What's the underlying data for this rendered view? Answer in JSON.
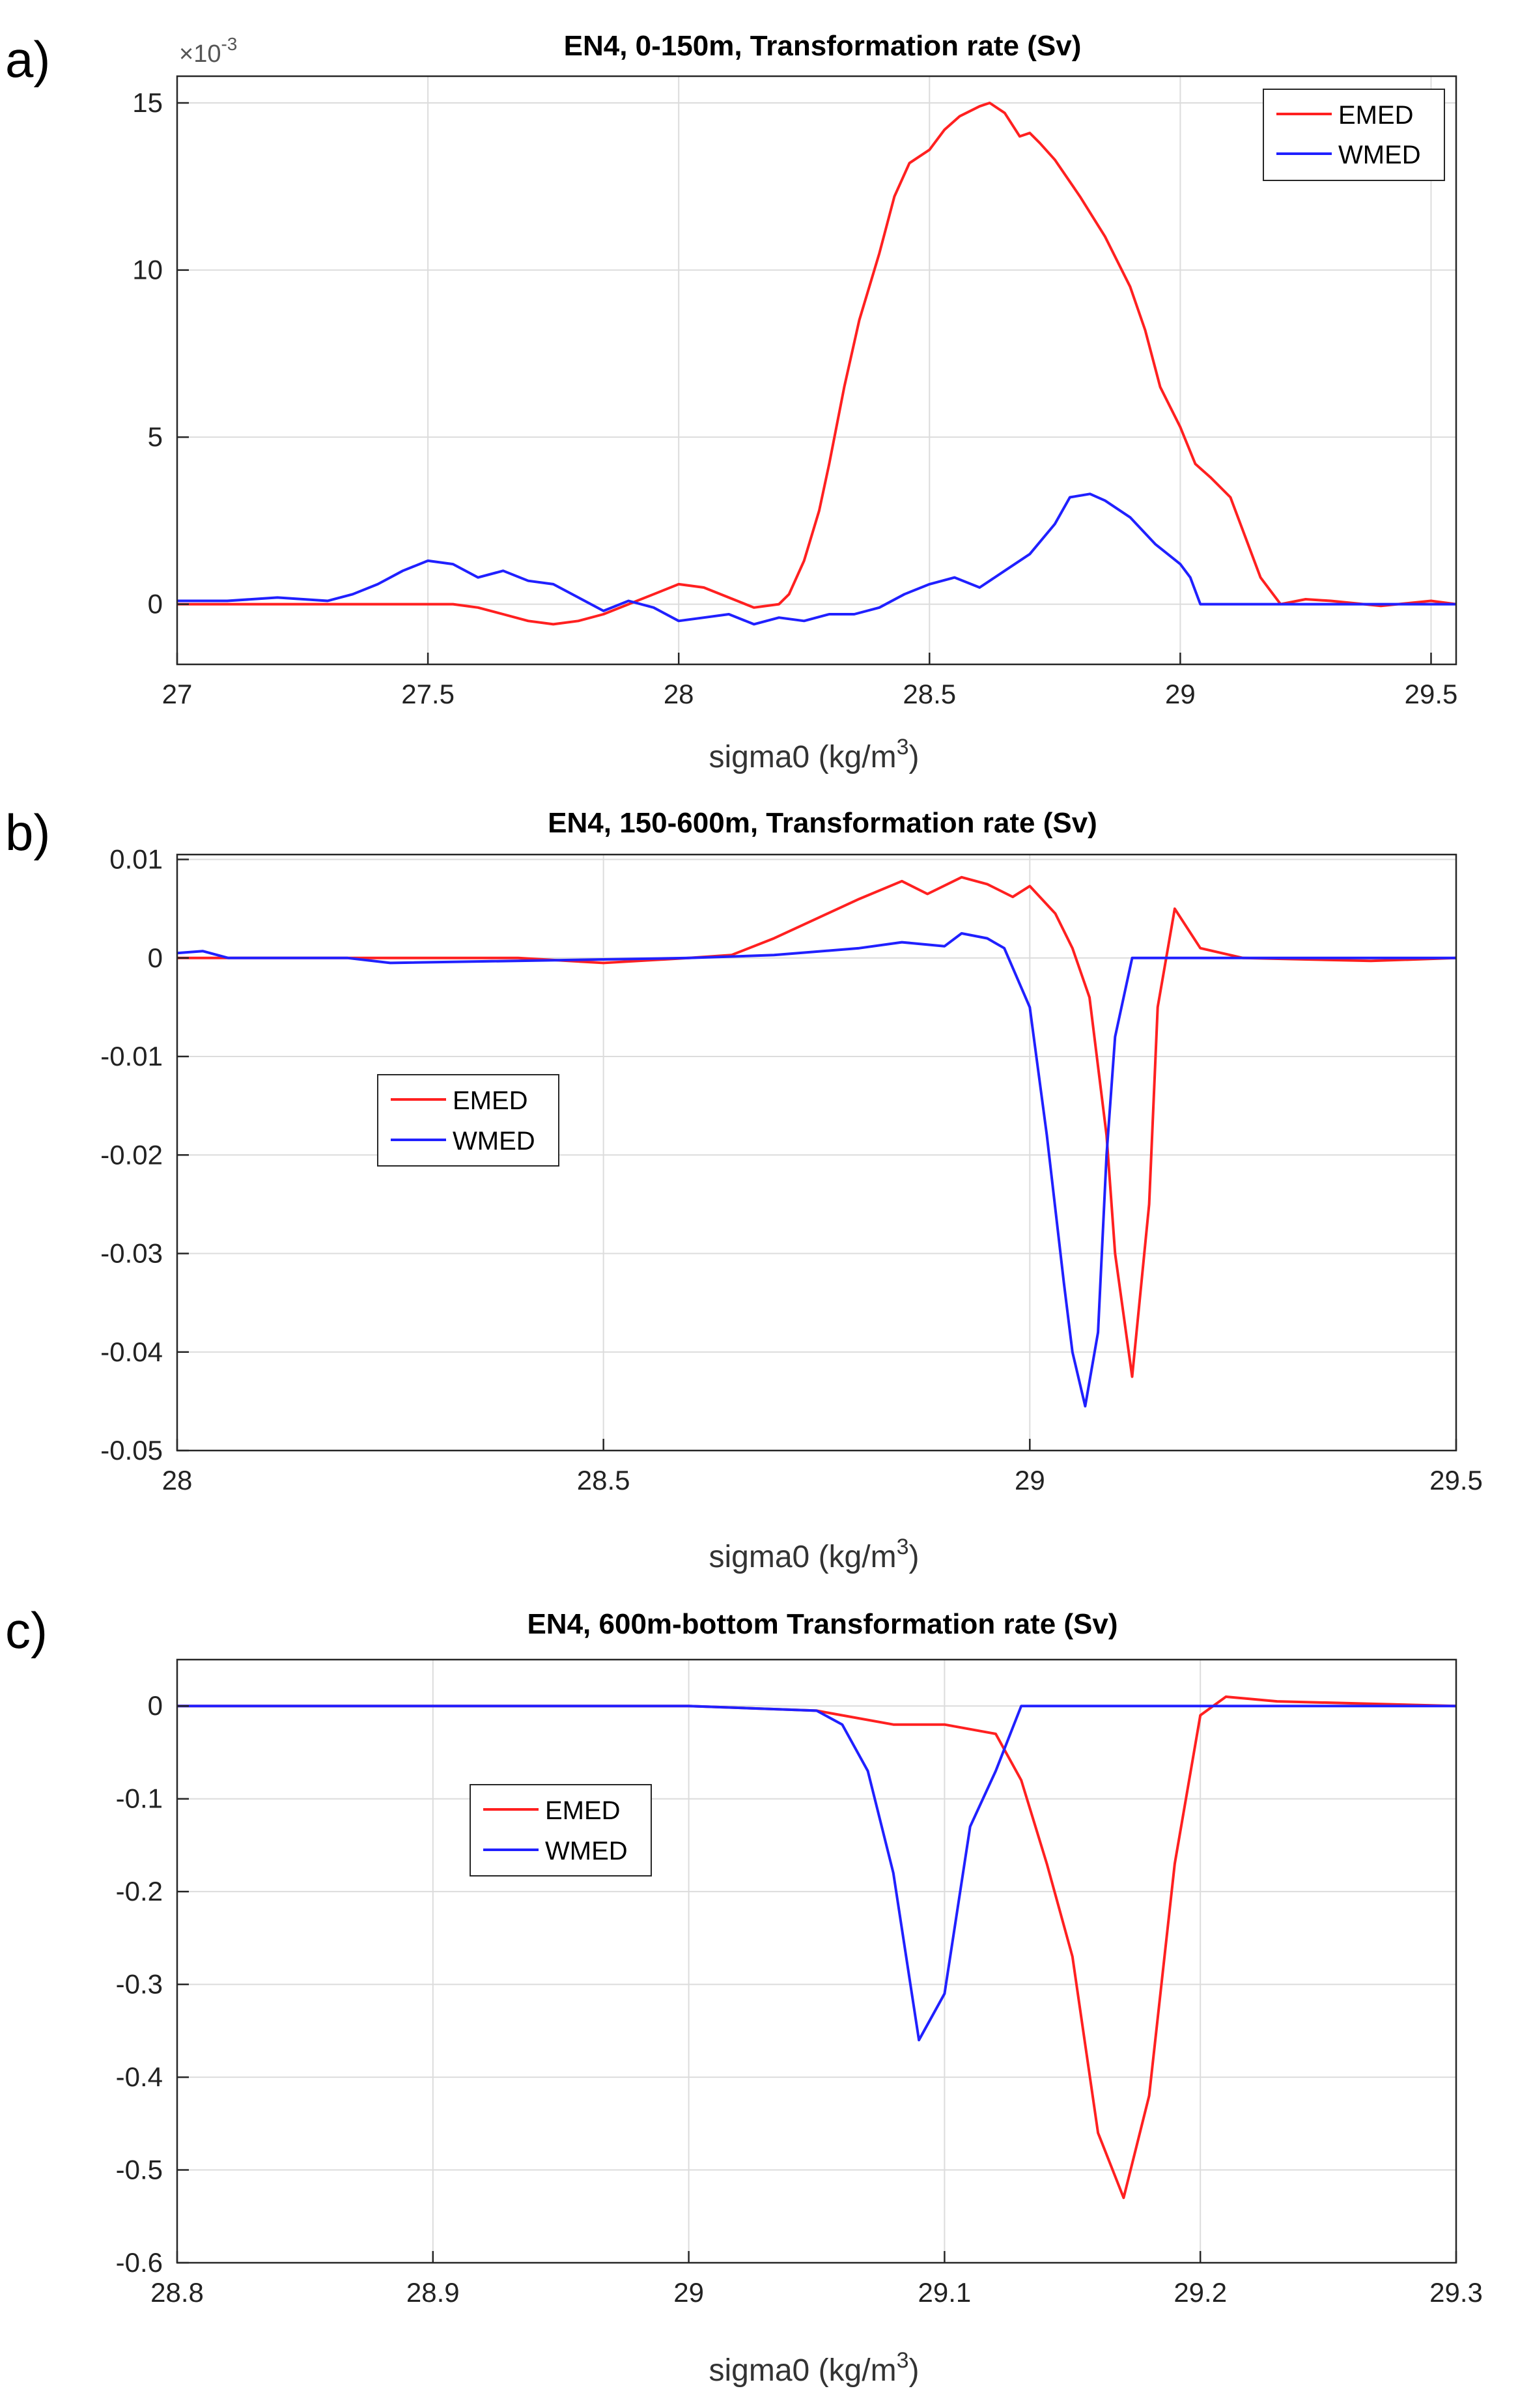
{
  "panels": [
    {
      "label": "a)",
      "title": "EN4, 0-150m, Transformation rate (Sv)",
      "xlabel": "sigma0 (kg/m",
      "xlabel_sup": "3",
      "xlabel_close": ")",
      "exponent_prefix": "×10",
      "exponent_sup": "-3",
      "legend": {
        "placement": "top-right",
        "entries": [
          "EMED",
          "WMED"
        ]
      }
    },
    {
      "label": "b)",
      "title": "EN4, 150-600m, Transformation rate (Sv)",
      "xlabel": "sigma0 (kg/m",
      "xlabel_sup": "3",
      "xlabel_close": ")",
      "legend": {
        "placement": "upper-left-center",
        "entries": [
          "EMED",
          "WMED"
        ]
      }
    },
    {
      "label": "c)",
      "title": "EN4, 600m-bottom Transformation rate (Sv)",
      "xlabel": "sigma0 (kg/m",
      "xlabel_sup": "3",
      "xlabel_close": ")",
      "legend": {
        "placement": "upper-left-center",
        "entries": [
          "EMED",
          "WMED"
        ]
      }
    }
  ],
  "colors": {
    "EMED": "#ff2020",
    "WMED": "#2020ff",
    "grid": "#dcdcdc",
    "axis": "#262626"
  },
  "chart_data": [
    {
      "type": "line",
      "grid": true,
      "xlim": [
        27,
        29.55
      ],
      "ylim": [
        -1.8,
        15.8
      ],
      "xticks": [
        27,
        27.5,
        28,
        28.5,
        29,
        29.5
      ],
      "xtick_labels": [
        "27",
        "27.5",
        "28",
        "28.5",
        "29",
        "29.5"
      ],
      "yticks": [
        0,
        5,
        10,
        15
      ],
      "ytick_labels": [
        "0",
        "5",
        "10",
        "15"
      ],
      "y_unit_multiplier": 0.001,
      "series": [
        {
          "name": "EMED",
          "x": [
            27.0,
            27.3,
            27.55,
            27.6,
            27.65,
            27.7,
            27.75,
            27.8,
            27.85,
            27.9,
            27.95,
            28.0,
            28.05,
            28.1,
            28.15,
            28.2,
            28.22,
            28.25,
            28.28,
            28.3,
            28.33,
            28.36,
            28.4,
            28.43,
            28.46,
            28.5,
            28.53,
            28.56,
            28.6,
            28.62,
            28.65,
            28.68,
            28.7,
            28.72,
            28.75,
            28.8,
            28.85,
            28.9,
            28.93,
            28.96,
            29.0,
            29.03,
            29.06,
            29.1,
            29.13,
            29.16,
            29.2,
            29.25,
            29.3,
            29.4,
            29.5,
            29.55
          ],
          "y": [
            0,
            0,
            0,
            -0.1,
            -0.3,
            -0.5,
            -0.6,
            -0.5,
            -0.3,
            0,
            0.3,
            0.6,
            0.5,
            0.2,
            -0.1,
            0,
            0.3,
            1.3,
            2.8,
            4.2,
            6.5,
            8.5,
            10.5,
            12.2,
            13.2,
            13.6,
            14.2,
            14.6,
            14.9,
            15.0,
            14.7,
            14.0,
            14.1,
            13.8,
            13.3,
            12.2,
            11.0,
            9.5,
            8.2,
            6.5,
            5.3,
            4.2,
            3.8,
            3.2,
            2.0,
            0.8,
            0,
            0.15,
            0.1,
            -0.05,
            0.1,
            0
          ]
        },
        {
          "name": "WMED",
          "x": [
            27.0,
            27.1,
            27.2,
            27.3,
            27.35,
            27.4,
            27.45,
            27.5,
            27.55,
            27.6,
            27.65,
            27.7,
            27.75,
            27.8,
            27.85,
            27.9,
            27.95,
            28.0,
            28.05,
            28.1,
            28.15,
            28.2,
            28.25,
            28.3,
            28.35,
            28.4,
            28.45,
            28.5,
            28.55,
            28.6,
            28.65,
            28.7,
            28.75,
            28.78,
            28.82,
            28.85,
            28.9,
            28.95,
            29.0,
            29.02,
            29.04,
            29.1,
            29.3,
            29.55
          ],
          "y": [
            0.1,
            0.1,
            0.2,
            0.1,
            0.3,
            0.6,
            1.0,
            1.3,
            1.2,
            0.8,
            1.0,
            0.7,
            0.6,
            0.2,
            -0.2,
            0.1,
            -0.1,
            -0.5,
            -0.4,
            -0.3,
            -0.6,
            -0.4,
            -0.5,
            -0.3,
            -0.3,
            -0.1,
            0.3,
            0.6,
            0.8,
            0.5,
            1.0,
            1.5,
            2.4,
            3.2,
            3.3,
            3.1,
            2.6,
            1.8,
            1.2,
            0.8,
            0,
            0,
            0,
            0
          ]
        }
      ]
    },
    {
      "type": "line",
      "grid": true,
      "xlim": [
        28,
        29.5
      ],
      "ylim": [
        -0.05,
        0.0105
      ],
      "xticks": [
        28,
        28.5,
        29,
        29.5
      ],
      "xtick_labels": [
        "28",
        "28.5",
        "29",
        "29.5"
      ],
      "yticks": [
        0.01,
        0,
        -0.01,
        -0.02,
        -0.03,
        -0.04,
        -0.05
      ],
      "ytick_labels": [
        "0.01",
        "0",
        "-0.01",
        "-0.02",
        "-0.03",
        "-0.04",
        "-0.05"
      ],
      "series": [
        {
          "name": "EMED",
          "x": [
            28.0,
            28.4,
            28.5,
            28.6,
            28.65,
            28.7,
            28.75,
            28.8,
            28.85,
            28.88,
            28.92,
            28.95,
            28.98,
            29.0,
            29.03,
            29.05,
            29.07,
            29.09,
            29.1,
            29.12,
            29.14,
            29.15,
            29.17,
            29.2,
            29.25,
            29.4,
            29.5
          ],
          "y": [
            0,
            0,
            -0.0005,
            0,
            0.0003,
            0.002,
            0.004,
            0.006,
            0.0078,
            0.0065,
            0.0082,
            0.0075,
            0.0062,
            0.0073,
            0.0045,
            0.001,
            -0.004,
            -0.018,
            -0.03,
            -0.0425,
            -0.025,
            -0.005,
            0.005,
            0.001,
            0,
            -0.0003,
            0
          ]
        },
        {
          "name": "WMED",
          "x": [
            28.0,
            28.03,
            28.06,
            28.2,
            28.25,
            28.6,
            28.7,
            28.8,
            28.85,
            28.9,
            28.92,
            28.95,
            28.97,
            29.0,
            29.02,
            29.04,
            29.05,
            29.065,
            29.08,
            29.09,
            29.1,
            29.12,
            29.3,
            29.5
          ],
          "y": [
            0.0005,
            0.0007,
            0,
            0,
            -0.0005,
            0,
            0.0003,
            0.001,
            0.0016,
            0.0012,
            0.0025,
            0.002,
            0.001,
            -0.005,
            -0.018,
            -0.033,
            -0.04,
            -0.0455,
            -0.038,
            -0.02,
            -0.008,
            0,
            0,
            0
          ]
        }
      ]
    },
    {
      "type": "line",
      "grid": true,
      "xlim": [
        28.8,
        29.3
      ],
      "ylim": [
        -0.6,
        0.05
      ],
      "xticks": [
        28.8,
        28.9,
        29,
        29.1,
        29.2,
        29.3
      ],
      "xtick_labels": [
        "28.8",
        "28.9",
        "29",
        "29.1",
        "29.2",
        "29.3"
      ],
      "yticks": [
        0,
        -0.1,
        -0.2,
        -0.3,
        -0.4,
        -0.5,
        -0.6
      ],
      "ytick_labels": [
        "0",
        "-0.1",
        "-0.2",
        "-0.3",
        "-0.4",
        "-0.5",
        "-0.6"
      ],
      "series": [
        {
          "name": "EMED",
          "x": [
            28.8,
            29.0,
            29.05,
            29.08,
            29.1,
            29.12,
            29.13,
            29.14,
            29.15,
            29.16,
            29.17,
            29.18,
            29.19,
            29.2,
            29.21,
            29.23,
            29.3
          ],
          "y": [
            0,
            0,
            -0.005,
            -0.02,
            -0.02,
            -0.03,
            -0.08,
            -0.17,
            -0.27,
            -0.46,
            -0.53,
            -0.42,
            -0.17,
            -0.01,
            0.01,
            0.005,
            0
          ]
        },
        {
          "name": "WMED",
          "x": [
            28.8,
            29.0,
            29.05,
            29.06,
            29.07,
            29.08,
            29.09,
            29.1,
            29.11,
            29.12,
            29.13,
            29.2,
            29.3
          ],
          "y": [
            0,
            0,
            -0.005,
            -0.02,
            -0.07,
            -0.18,
            -0.36,
            -0.31,
            -0.13,
            -0.07,
            0,
            0,
            0
          ]
        }
      ]
    }
  ]
}
